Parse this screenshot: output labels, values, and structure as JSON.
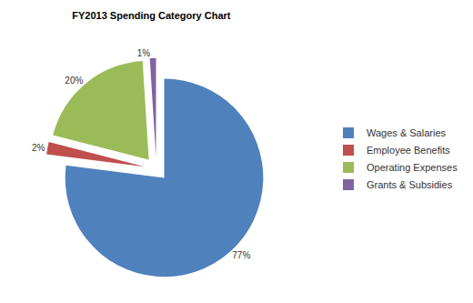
{
  "chart_data": {
    "type": "pie",
    "title": "FY2013 Spending Category Chart",
    "categories": [
      "Wages & Salaries",
      "Employee Benefits",
      "Operating Expenses",
      "Grants & Subsidies"
    ],
    "values": [
      77,
      2,
      20,
      1
    ],
    "value_labels": [
      "77%",
      "2%",
      "20%",
      "1%"
    ],
    "colors": [
      "#4f81bd",
      "#c0504d",
      "#9bbb59",
      "#8064a2"
    ],
    "data_labels": true,
    "legend": "right"
  }
}
